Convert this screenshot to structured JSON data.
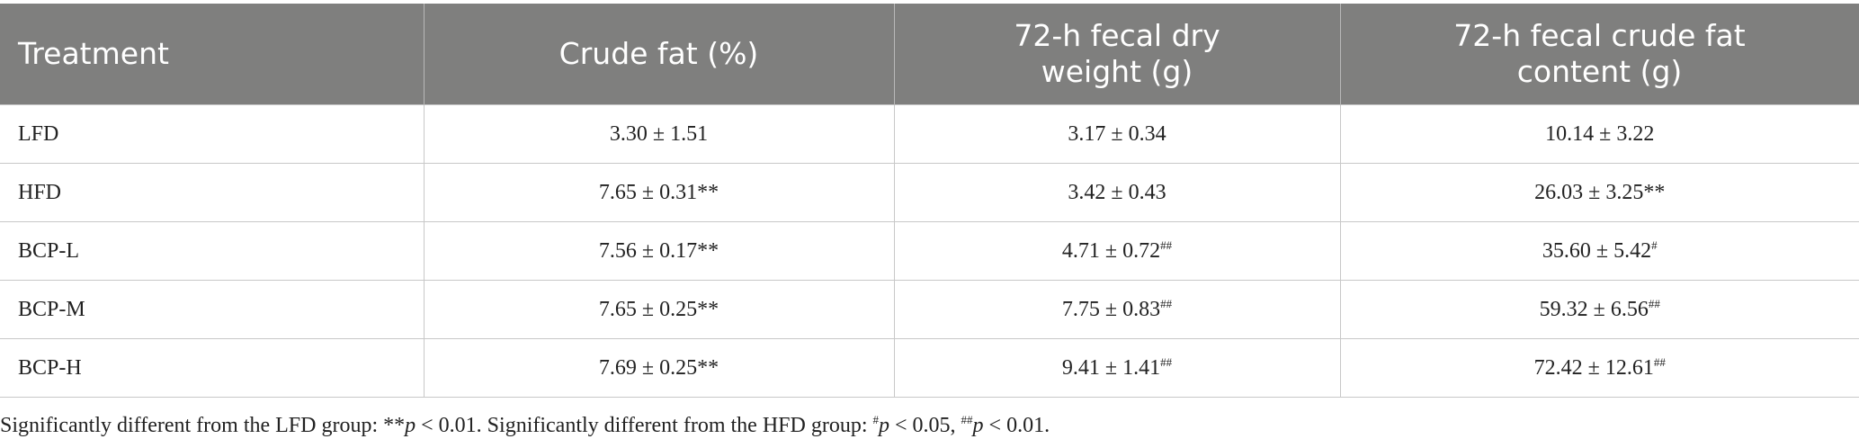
{
  "table": {
    "header": [
      "Treatment",
      "Crude fat (%)",
      "72-h fecal dry weight (g)",
      "72-h fecal crude fat content (g)"
    ],
    "rows": [
      [
        "LFD",
        {
          "value": "3.30 ± 1.51"
        },
        {
          "value": "3.17 ± 0.34"
        },
        {
          "value": "10.14 ± 3.22"
        }
      ],
      [
        "HFD",
        {
          "value": "7.65 ± 0.31**"
        },
        {
          "value": "3.42 ± 0.43"
        },
        {
          "value": "26.03 ± 3.25**"
        }
      ],
      [
        "BCP-L",
        {
          "value": "7.56 ± 0.17**"
        },
        {
          "value": "4.71 ± 0.72",
          "sup": "##"
        },
        {
          "value": "35.60 ± 5.42",
          "sup": "#"
        }
      ],
      [
        "BCP-M",
        {
          "value": "7.65 ± 0.25**"
        },
        {
          "value": "7.75 ± 0.83",
          "sup": "##"
        },
        {
          "value": "59.32 ± 6.56",
          "sup": "##"
        }
      ],
      [
        "BCP-H",
        {
          "value": "7.69 ± 0.25**"
        },
        {
          "value": "9.41 ± 1.41",
          "sup": "##"
        },
        {
          "value": "72.42 ± 12.61",
          "sup": "##"
        }
      ]
    ]
  },
  "footnote": [
    "Significantly different from the LFD group: **",
    "p",
    " < 0.01. Significantly different from the HFD group: ",
    "#",
    "p",
    " < 0.05, ",
    "##",
    "p",
    " < 0.01."
  ]
}
